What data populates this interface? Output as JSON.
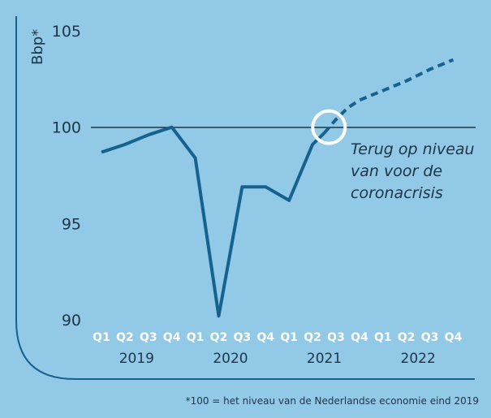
{
  "chart_data": {
    "type": "line",
    "ylabel": "Bbp*",
    "ylim": [
      90,
      105
    ],
    "yticks": [
      90,
      95,
      100,
      105
    ],
    "reference_line": 100,
    "categories": [
      "Q1",
      "Q2",
      "Q3",
      "Q4",
      "Q1",
      "Q2",
      "Q3",
      "Q4",
      "Q1",
      "Q2",
      "Q3",
      "Q4",
      "Q1",
      "Q2",
      "Q3",
      "Q4"
    ],
    "years": [
      {
        "label": "2019",
        "start": 0
      },
      {
        "label": "2020",
        "start": 4
      },
      {
        "label": "2021",
        "start": 8
      },
      {
        "label": "2022",
        "start": 12
      }
    ],
    "series": [
      {
        "name": "actual",
        "style": "solid",
        "points": [
          [
            0,
            98.7
          ],
          [
            1,
            99.1
          ],
          [
            2,
            99.6
          ],
          [
            3,
            100.0
          ],
          [
            4,
            98.4
          ],
          [
            5,
            90.2
          ],
          [
            6,
            96.9
          ],
          [
            7,
            96.9
          ],
          [
            8,
            96.2
          ],
          [
            9,
            99.1
          ],
          [
            9.5,
            99.7
          ]
        ]
      },
      {
        "name": "forecast",
        "style": "dashed",
        "points": [
          [
            9.5,
            99.7
          ],
          [
            10,
            100.4
          ],
          [
            10.5,
            101.0
          ],
          [
            11,
            101.4
          ],
          [
            12,
            101.9
          ],
          [
            13,
            102.4
          ],
          [
            14,
            103.0
          ],
          [
            15,
            103.5
          ]
        ]
      }
    ],
    "highlight": {
      "x": 9.7,
      "y": 100.0,
      "label": "crossing"
    },
    "annotation": [
      "Terug op niveau",
      "van voor de",
      "coronacrisis"
    ]
  },
  "footnote": "*100 = het niveau van de Nederlandse economie eind 2019",
  "colors": {
    "background": "#91c9e6",
    "line": "#15628f",
    "text": "#1d3549",
    "quarter_labels": "#ffffff",
    "circle": "#ffffff"
  }
}
